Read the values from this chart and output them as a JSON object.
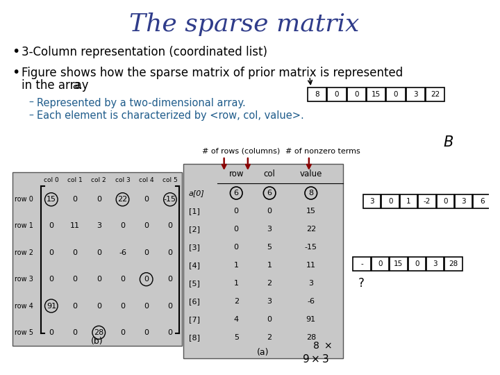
{
  "title": "The sparse matrix",
  "title_color": "#2F3C8A",
  "title_fontsize": 26,
  "bg_color": "#ffffff",
  "bullet1": "3-Column representation (coordinated list)",
  "bullet2_a": "Figure shows how the sparse matrix of prior matrix is represented",
  "bullet2_b": "in the array ",
  "bullet2_italic": "a.",
  "sub1": "Represented by a two-dimensional array.",
  "sub2": "Each element is characterized by <row, col, value>.",
  "sub_color": "#1F5C8B",
  "label_rows_cols": "# of rows (columns)",
  "label_nonzero": "# of nonzero terms",
  "matrix_b_header": [
    "col 0",
    "col 1",
    "col 2",
    "col 3",
    "col 4",
    "col 5"
  ],
  "matrix_b_rows": [
    "row 0",
    "row 1",
    "row 2",
    "row 3",
    "row 4",
    "row 5"
  ],
  "matrix_b_data": [
    [
      15,
      0,
      0,
      22,
      0,
      -15
    ],
    [
      0,
      11,
      3,
      0,
      0,
      0
    ],
    [
      0,
      0,
      0,
      -6,
      0,
      0
    ],
    [
      0,
      0,
      0,
      0,
      0,
      0
    ],
    [
      91,
      0,
      0,
      0,
      0,
      0
    ],
    [
      0,
      0,
      28,
      0,
      0,
      0
    ]
  ],
  "matrix_b_circled": [
    [
      0,
      0
    ],
    [
      0,
      3
    ],
    [
      0,
      5
    ],
    [
      3,
      4
    ],
    [
      4,
      0
    ],
    [
      5,
      2
    ]
  ],
  "matrix_a_indices": [
    "a[0]",
    "[1]",
    "[2]",
    "[3]",
    "[4]",
    "[5]",
    "[6]",
    "[7]",
    "[8]"
  ],
  "matrix_a_row": [
    6,
    0,
    0,
    0,
    1,
    1,
    2,
    4,
    5
  ],
  "matrix_a_col": [
    6,
    0,
    3,
    5,
    1,
    2,
    3,
    0,
    2
  ],
  "matrix_a_value": [
    8,
    15,
    22,
    -15,
    11,
    3,
    -6,
    91,
    28
  ],
  "arrow_color": "#8B0000",
  "table_bg": "#C8C8C8",
  "table_border": "#555555",
  "array1_vals": [
    "8",
    "0",
    "0",
    "15",
    "0",
    "3",
    "22"
  ],
  "array2_vals": [
    "3",
    "0",
    "1",
    "-2",
    "0",
    "3",
    "6"
  ],
  "array3_vals": [
    "-",
    "0",
    "15",
    "0",
    "3",
    "28"
  ]
}
